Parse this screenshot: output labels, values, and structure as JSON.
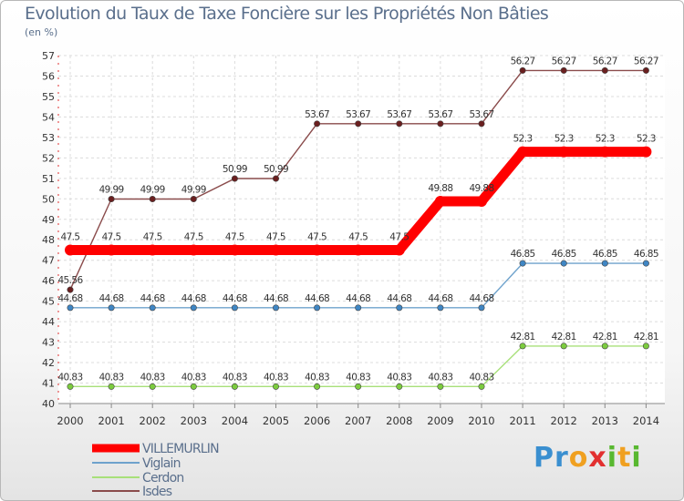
{
  "title": "Evolution du Taux de Taxe Foncière sur les Propriétés Non Bâties",
  "unit": "(en %)",
  "brand": "Proxiti",
  "chart_data": {
    "type": "line",
    "title": "Evolution du Taux de Taxe Foncière sur les Propriétés Non Bâties",
    "ylabel": "(en %)",
    "ylim": [
      40,
      57
    ],
    "yticks": [
      40,
      41,
      42,
      43,
      44,
      45,
      46,
      47,
      48,
      49,
      50,
      51,
      52,
      53,
      54,
      55,
      56,
      57
    ],
    "x": [
      "2000",
      "2001",
      "2002",
      "2003",
      "2004",
      "2005",
      "2006",
      "2007",
      "2008",
      "2009",
      "2010",
      "2011",
      "2012",
      "2013",
      "2014"
    ],
    "grid": true,
    "legend": "bottom-left",
    "series": [
      {
        "name": "VILLEMURLIN",
        "color": "#ff0000",
        "marker": "#ff0000",
        "values": [
          47.5,
          47.5,
          47.5,
          47.5,
          47.5,
          47.5,
          47.5,
          47.5,
          47.5,
          49.88,
          49.88,
          52.3,
          52.3,
          52.3,
          52.3
        ],
        "labels": [
          "47.5",
          "47.5",
          "47.5",
          "47.5",
          "47.5",
          "47.5",
          "47.5",
          "47.5",
          "47.5",
          "49.88",
          "49.88",
          "52.3",
          "52.3",
          "52.3",
          "52.3"
        ]
      },
      {
        "name": "Viglain",
        "color": "#6ea2cc",
        "marker": "#3f86c4",
        "values": [
          44.68,
          44.68,
          44.68,
          44.68,
          44.68,
          44.68,
          44.68,
          44.68,
          44.68,
          44.68,
          44.68,
          46.85,
          46.85,
          46.85,
          46.85
        ],
        "labels": [
          "44.68",
          "44.68",
          "44.68",
          "44.68",
          "44.68",
          "44.68",
          "44.68",
          "44.68",
          "44.68",
          "44.68",
          "44.68",
          "46.85",
          "46.85",
          "46.85",
          "46.85"
        ]
      },
      {
        "name": "Cerdon",
        "color": "#a8e07a",
        "marker": "#7ccc3e",
        "values": [
          40.83,
          40.83,
          40.83,
          40.83,
          40.83,
          40.83,
          40.83,
          40.83,
          40.83,
          40.83,
          40.83,
          42.81,
          42.81,
          42.81,
          42.81
        ],
        "labels": [
          "40.83",
          "40.83",
          "40.83",
          "40.83",
          "40.83",
          "40.83",
          "40.83",
          "40.83",
          "40.83",
          "40.83",
          "40.83",
          "42.81",
          "42.81",
          "42.81",
          "42.81"
        ]
      },
      {
        "name": "Isdes",
        "color": "#8a4b4b",
        "marker": "#6a1f1f",
        "values": [
          45.56,
          49.99,
          49.99,
          49.99,
          50.99,
          50.99,
          53.67,
          53.67,
          53.67,
          53.67,
          53.67,
          56.27,
          56.27,
          56.27,
          56.27
        ],
        "labels": [
          "45.56",
          "49.99",
          "49.99",
          "49.99",
          "50.99",
          "50.99",
          "53.67",
          "53.67",
          "53.67",
          "53.67",
          "53.67",
          "56.27",
          "56.27",
          "56.27",
          "56.27"
        ]
      }
    ]
  }
}
